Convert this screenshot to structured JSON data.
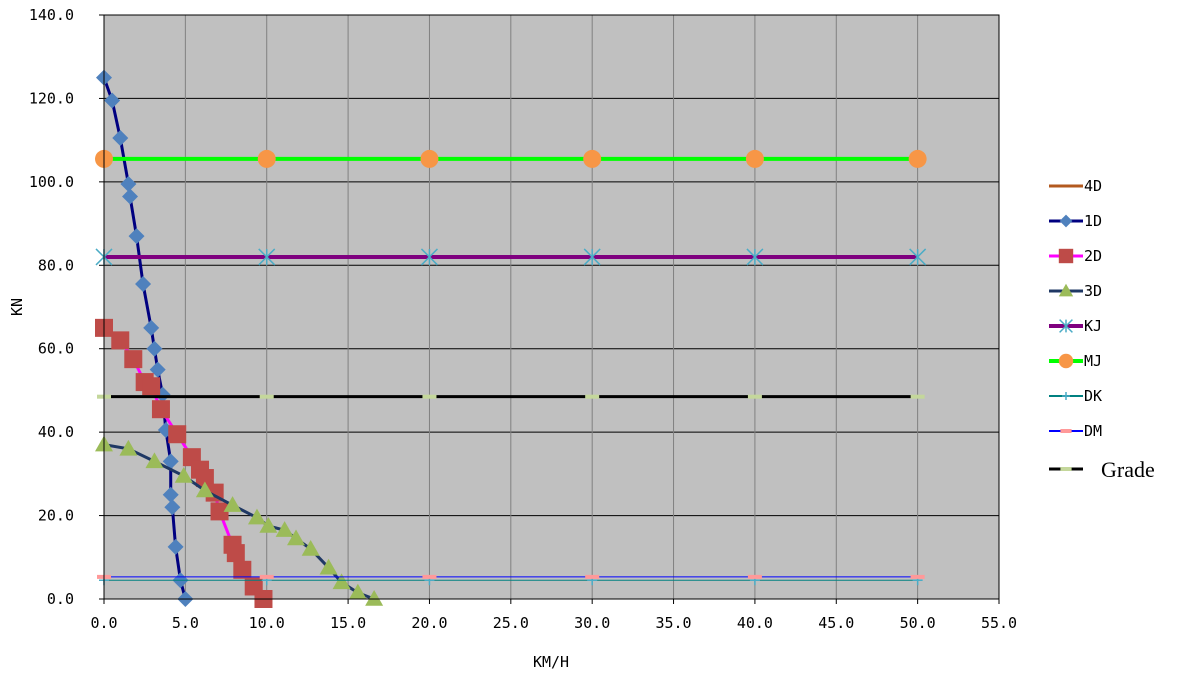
{
  "chart_data": {
    "type": "line",
    "title": "",
    "xlabel": "KM/H",
    "ylabel": "KN",
    "xlim": [
      0,
      55
    ],
    "ylim": [
      0,
      140
    ],
    "x_ticks": [
      "0.0",
      "5.0",
      "10.0",
      "15.0",
      "20.0",
      "25.0",
      "30.0",
      "35.0",
      "40.0",
      "45.0",
      "50.0",
      "55.0"
    ],
    "y_ticks": [
      "0.0",
      "20.0",
      "40.0",
      "60.0",
      "80.0",
      "100.0",
      "120.0",
      "140.0"
    ],
    "grid": true,
    "plot_background": "#c0c0c0",
    "legend_position": "right",
    "series": [
      {
        "name": "4D",
        "color": "#b35a1f",
        "marker": "none",
        "line_width": 3,
        "points": []
      },
      {
        "name": "1D",
        "color": "#000080",
        "marker": "diamond",
        "marker_color": "#4f81bd",
        "line_width": 3,
        "points": [
          [
            0,
            125
          ],
          [
            0.5,
            119.5
          ],
          [
            1,
            110.5
          ],
          [
            1.5,
            99.5
          ],
          [
            1.6,
            96.5
          ],
          [
            2,
            87
          ],
          [
            2.4,
            75.5
          ],
          [
            2.9,
            65
          ],
          [
            3.1,
            60
          ],
          [
            3.3,
            55
          ],
          [
            3.6,
            49
          ],
          [
            3.8,
            40.5
          ],
          [
            4.1,
            33
          ],
          [
            4.1,
            25
          ],
          [
            4.2,
            22
          ],
          [
            4.4,
            12.5
          ],
          [
            4.7,
            4.5
          ],
          [
            5.0,
            0
          ]
        ]
      },
      {
        "name": "2D",
        "color": "#ff00ff",
        "marker": "square",
        "marker_color": "#be4b48",
        "line_width": 3,
        "points": [
          [
            0,
            65
          ],
          [
            1,
            62
          ],
          [
            1.8,
            57.5
          ],
          [
            2.5,
            52
          ],
          [
            2.9,
            51
          ],
          [
            3.5,
            45.5
          ],
          [
            4.5,
            39.5
          ],
          [
            5.4,
            34
          ],
          [
            5.9,
            31
          ],
          [
            6.2,
            29
          ],
          [
            6.8,
            25.5
          ],
          [
            7.1,
            21
          ],
          [
            7.9,
            13
          ],
          [
            8.1,
            11
          ],
          [
            8.5,
            7
          ],
          [
            9.2,
            3
          ],
          [
            9.8,
            0
          ]
        ]
      },
      {
        "name": "3D",
        "color": "#1f3864",
        "marker": "triangle",
        "marker_color": "#9bbb59",
        "line_width": 3,
        "points": [
          [
            0,
            37
          ],
          [
            1.5,
            36
          ],
          [
            3.1,
            33
          ],
          [
            4.9,
            29.5
          ],
          [
            6.2,
            26
          ],
          [
            7.9,
            22.5
          ],
          [
            9.4,
            19.5
          ],
          [
            10.1,
            17.5
          ],
          [
            11.1,
            16.5
          ],
          [
            11.8,
            14.5
          ],
          [
            12.7,
            12
          ],
          [
            13.8,
            7.5
          ],
          [
            14.6,
            4
          ],
          [
            15.6,
            1.5
          ],
          [
            16.6,
            0
          ]
        ]
      },
      {
        "name": "KJ",
        "color": "#7f007f",
        "marker": "star",
        "marker_color": "#4bacc6",
        "line_width": 4,
        "points": [
          [
            0,
            82
          ],
          [
            10,
            82
          ],
          [
            20,
            82
          ],
          [
            30,
            82
          ],
          [
            40,
            82
          ],
          [
            50,
            82
          ]
        ]
      },
      {
        "name": "MJ",
        "color": "#00ff00",
        "marker": "circle",
        "marker_color": "#f79646",
        "line_width": 4,
        "points": [
          [
            0,
            105.5
          ],
          [
            10,
            105.5
          ],
          [
            20,
            105.5
          ],
          [
            30,
            105.5
          ],
          [
            40,
            105.5
          ],
          [
            50,
            105.5
          ]
        ]
      },
      {
        "name": "DK",
        "color": "#008080",
        "marker": "plus",
        "marker_color": "#4bacc6",
        "line_width": 1,
        "points": [
          [
            0,
            4.5
          ],
          [
            10,
            4.5
          ],
          [
            20,
            4.5
          ],
          [
            30,
            4.5
          ],
          [
            40,
            4.5
          ],
          [
            50,
            4.5
          ]
        ]
      },
      {
        "name": "DM",
        "color": "#0000ff",
        "marker": "dash",
        "marker_color": "#ff9999",
        "line_width": 1,
        "points": [
          [
            0,
            5.3
          ],
          [
            10,
            5.3
          ],
          [
            20,
            5.3
          ],
          [
            30,
            5.3
          ],
          [
            40,
            5.3
          ],
          [
            50,
            5.3
          ]
        ]
      },
      {
        "name": "Grade",
        "color": "#000000",
        "marker": "dash",
        "marker_color": "#c4d79b",
        "line_width": 3,
        "points": [
          [
            0,
            48.5
          ],
          [
            10,
            48.5
          ],
          [
            20,
            48.5
          ],
          [
            30,
            48.5
          ],
          [
            40,
            48.5
          ],
          [
            50,
            48.5
          ]
        ]
      }
    ]
  }
}
